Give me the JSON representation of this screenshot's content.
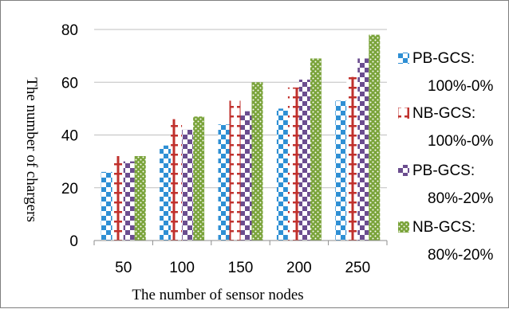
{
  "chart_data": {
    "type": "bar",
    "title": "",
    "xlabel": "The number of sensor nodes",
    "ylabel": "The number of chargers",
    "categories": [
      "50",
      "100",
      "150",
      "200",
      "250"
    ],
    "ylim": [
      0,
      80
    ],
    "yticks": [
      "0",
      "20",
      "40",
      "60",
      "80"
    ],
    "grid": true,
    "legend_position": "right",
    "series": [
      {
        "name": "PB-GCS:\n100%-0%",
        "legend_lines": [
          "PB-GCS:",
          "100%-0%"
        ],
        "values": [
          26,
          36,
          44,
          50,
          53
        ],
        "color": "#2e8fd4",
        "pattern": "checker-blue"
      },
      {
        "name": "NB-GCS:\n100%-0%",
        "legend_lines": [
          "NB-GCS:",
          "100%-0%"
        ],
        "values": [
          32,
          46,
          53,
          58,
          62
        ],
        "color": "#c0312d",
        "pattern": "ibeam-red"
      },
      {
        "name": "PB-GCS:\n80%-20%",
        "legend_lines": [
          "PB-GCS:",
          "80%-20%"
        ],
        "values": [
          30,
          42,
          49,
          61,
          69
        ],
        "color": "#6b4d8f",
        "pattern": "checker-purple"
      },
      {
        "name": "NB-GCS:\n80%-20%",
        "legend_lines": [
          "NB-GCS:",
          "80%-20%"
        ],
        "values": [
          32,
          47,
          60,
          69,
          78
        ],
        "color": "#7aa33a",
        "pattern": "dots-green"
      }
    ]
  }
}
